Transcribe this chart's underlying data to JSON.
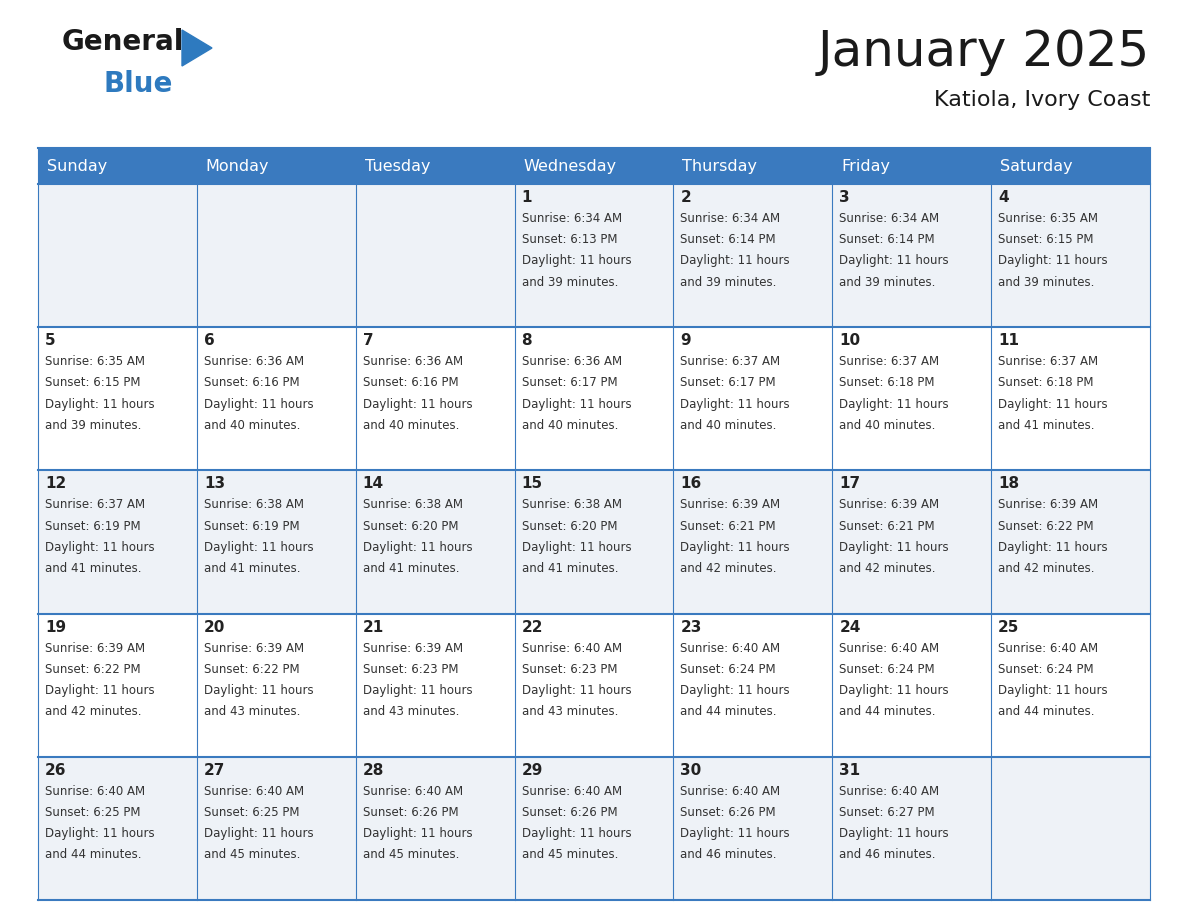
{
  "title": "January 2025",
  "subtitle": "Katiola, Ivory Coast",
  "header_color": "#3a7abf",
  "header_text_color": "#ffffff",
  "cell_bg_even": "#eef2f7",
  "cell_bg_odd": "#ffffff",
  "grid_line_color": "#3a7abf",
  "text_color": "#222222",
  "days_of_week": [
    "Sunday",
    "Monday",
    "Tuesday",
    "Wednesday",
    "Thursday",
    "Friday",
    "Saturday"
  ],
  "weeks": [
    [
      {
        "day": "",
        "sunrise": "",
        "sunset": "",
        "daylight_h": "",
        "daylight_m": ""
      },
      {
        "day": "",
        "sunrise": "",
        "sunset": "",
        "daylight_h": "",
        "daylight_m": ""
      },
      {
        "day": "",
        "sunrise": "",
        "sunset": "",
        "daylight_h": "",
        "daylight_m": ""
      },
      {
        "day": "1",
        "sunrise": "6:34 AM",
        "sunset": "6:13 PM",
        "daylight_h": "11",
        "daylight_m": "39"
      },
      {
        "day": "2",
        "sunrise": "6:34 AM",
        "sunset": "6:14 PM",
        "daylight_h": "11",
        "daylight_m": "39"
      },
      {
        "day": "3",
        "sunrise": "6:34 AM",
        "sunset": "6:14 PM",
        "daylight_h": "11",
        "daylight_m": "39"
      },
      {
        "day": "4",
        "sunrise": "6:35 AM",
        "sunset": "6:15 PM",
        "daylight_h": "11",
        "daylight_m": "39"
      }
    ],
    [
      {
        "day": "5",
        "sunrise": "6:35 AM",
        "sunset": "6:15 PM",
        "daylight_h": "11",
        "daylight_m": "39"
      },
      {
        "day": "6",
        "sunrise": "6:36 AM",
        "sunset": "6:16 PM",
        "daylight_h": "11",
        "daylight_m": "40"
      },
      {
        "day": "7",
        "sunrise": "6:36 AM",
        "sunset": "6:16 PM",
        "daylight_h": "11",
        "daylight_m": "40"
      },
      {
        "day": "8",
        "sunrise": "6:36 AM",
        "sunset": "6:17 PM",
        "daylight_h": "11",
        "daylight_m": "40"
      },
      {
        "day": "9",
        "sunrise": "6:37 AM",
        "sunset": "6:17 PM",
        "daylight_h": "11",
        "daylight_m": "40"
      },
      {
        "day": "10",
        "sunrise": "6:37 AM",
        "sunset": "6:18 PM",
        "daylight_h": "11",
        "daylight_m": "40"
      },
      {
        "day": "11",
        "sunrise": "6:37 AM",
        "sunset": "6:18 PM",
        "daylight_h": "11",
        "daylight_m": "41"
      }
    ],
    [
      {
        "day": "12",
        "sunrise": "6:37 AM",
        "sunset": "6:19 PM",
        "daylight_h": "11",
        "daylight_m": "41"
      },
      {
        "day": "13",
        "sunrise": "6:38 AM",
        "sunset": "6:19 PM",
        "daylight_h": "11",
        "daylight_m": "41"
      },
      {
        "day": "14",
        "sunrise": "6:38 AM",
        "sunset": "6:20 PM",
        "daylight_h": "11",
        "daylight_m": "41"
      },
      {
        "day": "15",
        "sunrise": "6:38 AM",
        "sunset": "6:20 PM",
        "daylight_h": "11",
        "daylight_m": "41"
      },
      {
        "day": "16",
        "sunrise": "6:39 AM",
        "sunset": "6:21 PM",
        "daylight_h": "11",
        "daylight_m": "42"
      },
      {
        "day": "17",
        "sunrise": "6:39 AM",
        "sunset": "6:21 PM",
        "daylight_h": "11",
        "daylight_m": "42"
      },
      {
        "day": "18",
        "sunrise": "6:39 AM",
        "sunset": "6:22 PM",
        "daylight_h": "11",
        "daylight_m": "42"
      }
    ],
    [
      {
        "day": "19",
        "sunrise": "6:39 AM",
        "sunset": "6:22 PM",
        "daylight_h": "11",
        "daylight_m": "42"
      },
      {
        "day": "20",
        "sunrise": "6:39 AM",
        "sunset": "6:22 PM",
        "daylight_h": "11",
        "daylight_m": "43"
      },
      {
        "day": "21",
        "sunrise": "6:39 AM",
        "sunset": "6:23 PM",
        "daylight_h": "11",
        "daylight_m": "43"
      },
      {
        "day": "22",
        "sunrise": "6:40 AM",
        "sunset": "6:23 PM",
        "daylight_h": "11",
        "daylight_m": "43"
      },
      {
        "day": "23",
        "sunrise": "6:40 AM",
        "sunset": "6:24 PM",
        "daylight_h": "11",
        "daylight_m": "44"
      },
      {
        "day": "24",
        "sunrise": "6:40 AM",
        "sunset": "6:24 PM",
        "daylight_h": "11",
        "daylight_m": "44"
      },
      {
        "day": "25",
        "sunrise": "6:40 AM",
        "sunset": "6:24 PM",
        "daylight_h": "11",
        "daylight_m": "44"
      }
    ],
    [
      {
        "day": "26",
        "sunrise": "6:40 AM",
        "sunset": "6:25 PM",
        "daylight_h": "11",
        "daylight_m": "44"
      },
      {
        "day": "27",
        "sunrise": "6:40 AM",
        "sunset": "6:25 PM",
        "daylight_h": "11",
        "daylight_m": "45"
      },
      {
        "day": "28",
        "sunrise": "6:40 AM",
        "sunset": "6:26 PM",
        "daylight_h": "11",
        "daylight_m": "45"
      },
      {
        "day": "29",
        "sunrise": "6:40 AM",
        "sunset": "6:26 PM",
        "daylight_h": "11",
        "daylight_m": "45"
      },
      {
        "day": "30",
        "sunrise": "6:40 AM",
        "sunset": "6:26 PM",
        "daylight_h": "11",
        "daylight_m": "46"
      },
      {
        "day": "31",
        "sunrise": "6:40 AM",
        "sunset": "6:27 PM",
        "daylight_h": "11",
        "daylight_m": "46"
      },
      {
        "day": "",
        "sunrise": "",
        "sunset": "",
        "daylight_h": "",
        "daylight_m": ""
      }
    ]
  ]
}
